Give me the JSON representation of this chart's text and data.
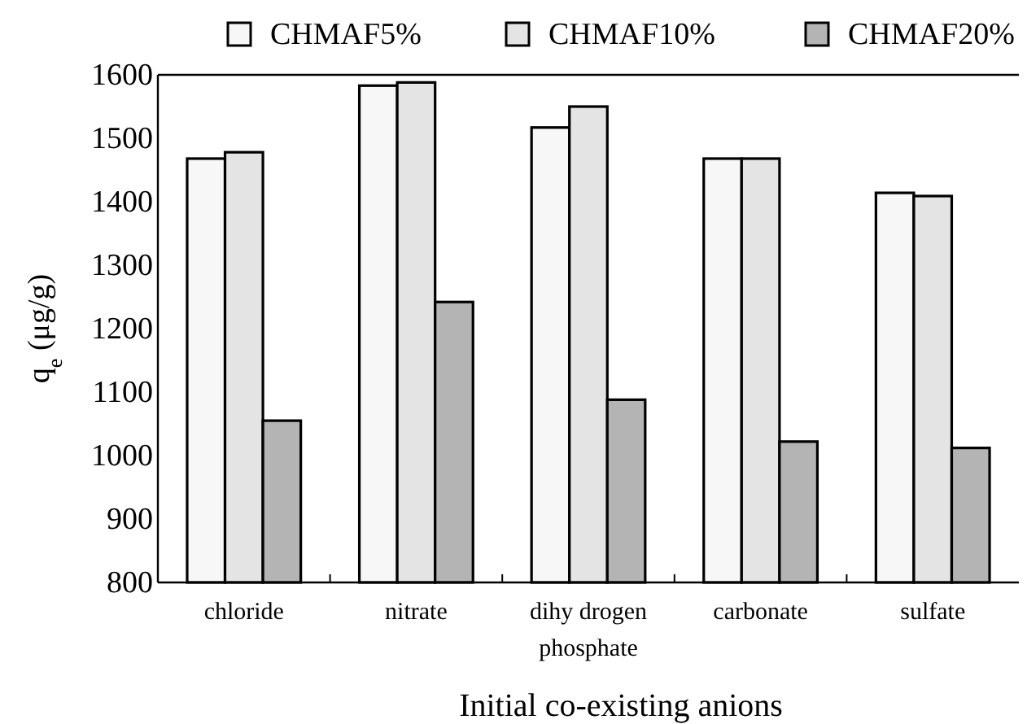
{
  "chart_data": {
    "type": "bar",
    "xlabel": "Initial co-existing anions",
    "ylabel": "q$_{e}$ (μg/g)",
    "categories": [
      "chloride",
      "nitrate",
      "dihy drogen phosphate",
      "carbonate",
      "sulfate"
    ],
    "series": [
      {
        "name": "CHMAF5%",
        "color": "#f7f7f7",
        "values": [
          1468,
          1583,
          1517,
          1468,
          1414
        ]
      },
      {
        "name": "CHMAF10%",
        "color": "#e4e4e4",
        "values": [
          1478,
          1588,
          1550,
          1468,
          1409
        ]
      },
      {
        "name": "CHMAF20%",
        "color": "#b4b4b4",
        "values": [
          1055,
          1242,
          1088,
          1022,
          1012
        ]
      }
    ],
    "ylim": [
      800,
      1600
    ],
    "yticks": [
      800,
      900,
      1000,
      1100,
      1200,
      1300,
      1400,
      1500,
      1600
    ],
    "grid": false,
    "legend": "top"
  }
}
